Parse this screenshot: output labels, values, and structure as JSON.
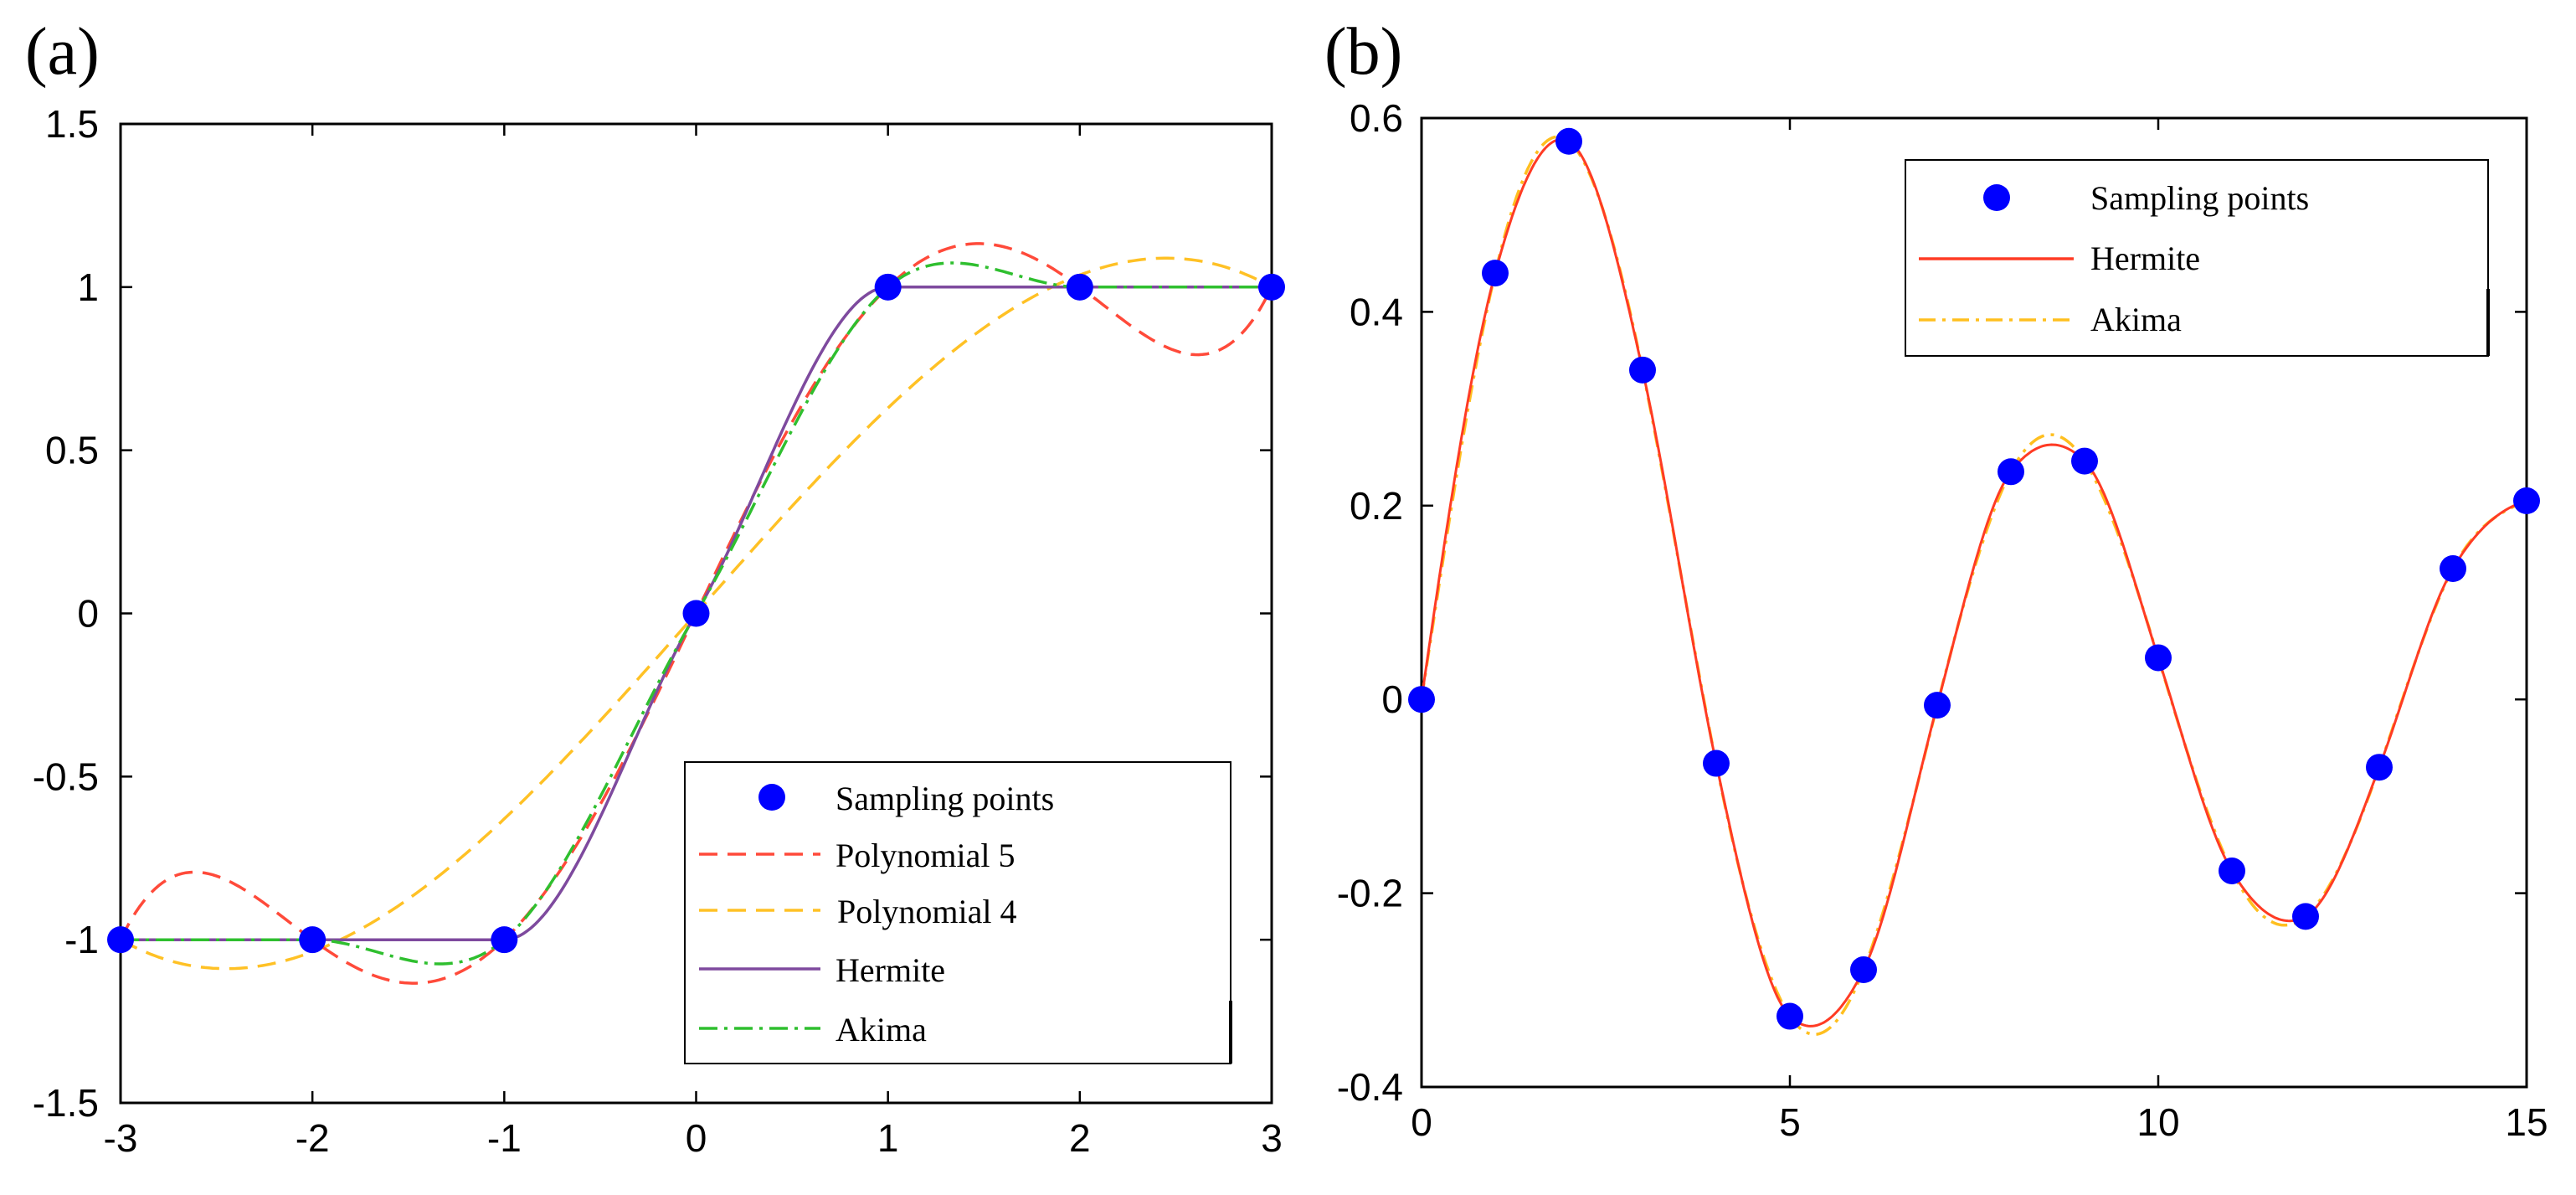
{
  "chart_data": [
    {
      "panel": "(a)",
      "type": "line",
      "xlim": [
        -3,
        3
      ],
      "ylim": [
        -1.5,
        1.5
      ],
      "xticks": [
        "-3",
        "-2",
        "-1",
        "0",
        "1",
        "2",
        "3"
      ],
      "yticks": [
        "-1.5",
        "-1",
        "-0.5",
        "0",
        "0.5",
        "1",
        "1.5"
      ],
      "grid": false,
      "legend_position": "bottom-right",
      "sampling_points": {
        "x": [
          -3,
          -2,
          -1,
          0,
          1,
          2,
          3
        ],
        "y": [
          -1,
          -1,
          -1,
          0,
          1,
          1,
          1
        ]
      },
      "series": [
        {
          "name": "Sampling points",
          "style": "marker",
          "color": "#0000ff"
        },
        {
          "name": "Polynomial 5",
          "style": "dashed",
          "color": "#ff4a3a"
        },
        {
          "name": "Polynomial 4",
          "style": "dashed",
          "color": "#ffc125"
        },
        {
          "name": "Hermite",
          "style": "solid",
          "color": "#7e4a9e"
        },
        {
          "name": "Akima",
          "style": "dashdot",
          "color": "#2fbf2f"
        }
      ]
    },
    {
      "panel": "(b)",
      "type": "line",
      "xlim": [
        0,
        15
      ],
      "ylim": [
        -0.4,
        0.6
      ],
      "xticks": [
        "0",
        "5",
        "10",
        "15"
      ],
      "yticks": [
        "-0.4",
        "-0.2",
        "0",
        "0.2",
        "0.4",
        "0.6"
      ],
      "grid": false,
      "legend_position": "top-right",
      "sampling_points": {
        "x": [
          0,
          1,
          2,
          3,
          4,
          5,
          6,
          7,
          8,
          9,
          10,
          11,
          12,
          13,
          14,
          15
        ],
        "y": [
          0,
          0.44,
          0.576,
          0.34,
          -0.066,
          -0.327,
          -0.279,
          -0.006,
          0.235,
          0.246,
          0.043,
          -0.177,
          -0.224,
          -0.07,
          0.135,
          0.205
        ]
      },
      "series": [
        {
          "name": "Sampling points",
          "style": "marker",
          "color": "#0000ff"
        },
        {
          "name": "Hermite",
          "style": "solid",
          "color": "#ff3b24"
        },
        {
          "name": "Akima",
          "style": "dashdot",
          "color": "#ffbf1f"
        }
      ]
    }
  ]
}
